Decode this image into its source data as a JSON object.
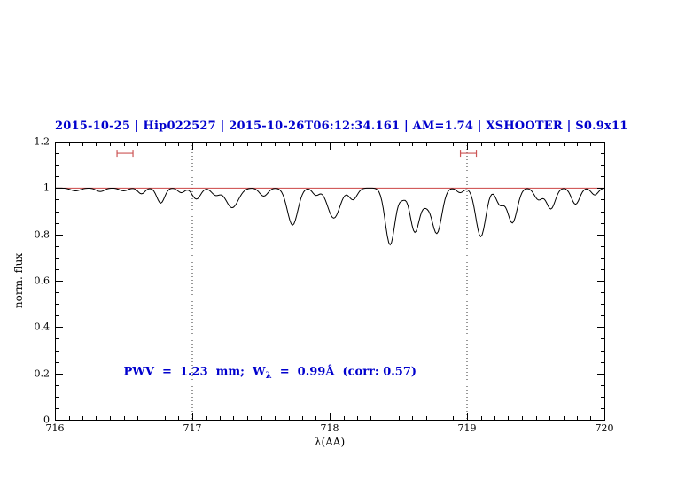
{
  "colors": {
    "title": "#0000cd",
    "annotation": "#0000cd",
    "spectrum": "#000000",
    "continuum": "#cc4444",
    "markers": "#cc5555",
    "frame": "#000000"
  },
  "chart_data": {
    "type": "line",
    "title": "2015-10-25 | Hip022527 | 2015-10-26T06:12:34.161 | AM=1.74 | XSHOOTER | S0.9x11",
    "xlabel": "λ(AA)",
    "ylabel": "norm. flux",
    "xlim": [
      716,
      720
    ],
    "ylim": [
      0,
      1.2
    ],
    "x_tick_labels": [
      "716",
      "717",
      "718",
      "719",
      "720"
    ],
    "y_tick_labels": [
      "0",
      "0.2",
      "0.4",
      "0.6",
      "0.8",
      "1",
      "1.2"
    ],
    "x_minor_step": 0.1,
    "y_minor_step": 0.05,
    "grid": false,
    "legend": "none",
    "continuum_level": 1.0,
    "dotted_vlines": [
      717,
      719
    ],
    "range_markers": [
      {
        "center": 716.51,
        "halfwidth": 0.058,
        "y": 1.15
      },
      {
        "center": 719.01,
        "halfwidth": 0.058,
        "y": 1.15
      }
    ],
    "absorption_lines": [
      {
        "center": 716.15,
        "depth": 0.012,
        "sigma": 0.035
      },
      {
        "center": 716.33,
        "depth": 0.015,
        "sigma": 0.03
      },
      {
        "center": 716.5,
        "depth": 0.012,
        "sigma": 0.03
      },
      {
        "center": 716.63,
        "depth": 0.025,
        "sigma": 0.025
      },
      {
        "center": 716.77,
        "depth": 0.065,
        "sigma": 0.028
      },
      {
        "center": 716.92,
        "depth": 0.02,
        "sigma": 0.025
      },
      {
        "center": 717.03,
        "depth": 0.048,
        "sigma": 0.03
      },
      {
        "center": 717.17,
        "depth": 0.03,
        "sigma": 0.03
      },
      {
        "center": 717.29,
        "depth": 0.085,
        "sigma": 0.045
      },
      {
        "center": 717.52,
        "depth": 0.035,
        "sigma": 0.03
      },
      {
        "center": 717.73,
        "depth": 0.16,
        "sigma": 0.038
      },
      {
        "center": 717.9,
        "depth": 0.03,
        "sigma": 0.025
      },
      {
        "center": 718.03,
        "depth": 0.13,
        "sigma": 0.045
      },
      {
        "center": 718.17,
        "depth": 0.05,
        "sigma": 0.03
      },
      {
        "center": 718.44,
        "depth": 0.245,
        "sigma": 0.035
      },
      {
        "center": 718.53,
        "depth": 0.04,
        "sigma": 0.025
      },
      {
        "center": 718.62,
        "depth": 0.19,
        "sigma": 0.034
      },
      {
        "center": 718.7,
        "depth": 0.06,
        "sigma": 0.03
      },
      {
        "center": 718.78,
        "depth": 0.195,
        "sigma": 0.036
      },
      {
        "center": 718.95,
        "depth": 0.02,
        "sigma": 0.025
      },
      {
        "center": 719.1,
        "depth": 0.21,
        "sigma": 0.036
      },
      {
        "center": 719.24,
        "depth": 0.07,
        "sigma": 0.03
      },
      {
        "center": 719.33,
        "depth": 0.15,
        "sigma": 0.035
      },
      {
        "center": 719.52,
        "depth": 0.05,
        "sigma": 0.03
      },
      {
        "center": 719.61,
        "depth": 0.09,
        "sigma": 0.032
      },
      {
        "center": 719.79,
        "depth": 0.07,
        "sigma": 0.03
      },
      {
        "center": 719.93,
        "depth": 0.03,
        "sigma": 0.025
      }
    ],
    "annotation": {
      "prefix": "PWV  =  1.23  mm;  W",
      "sub": "λ",
      "suffix": "  =  0.99Å  (corr: 0.57)",
      "x": 716.5,
      "y": 0.2
    }
  }
}
